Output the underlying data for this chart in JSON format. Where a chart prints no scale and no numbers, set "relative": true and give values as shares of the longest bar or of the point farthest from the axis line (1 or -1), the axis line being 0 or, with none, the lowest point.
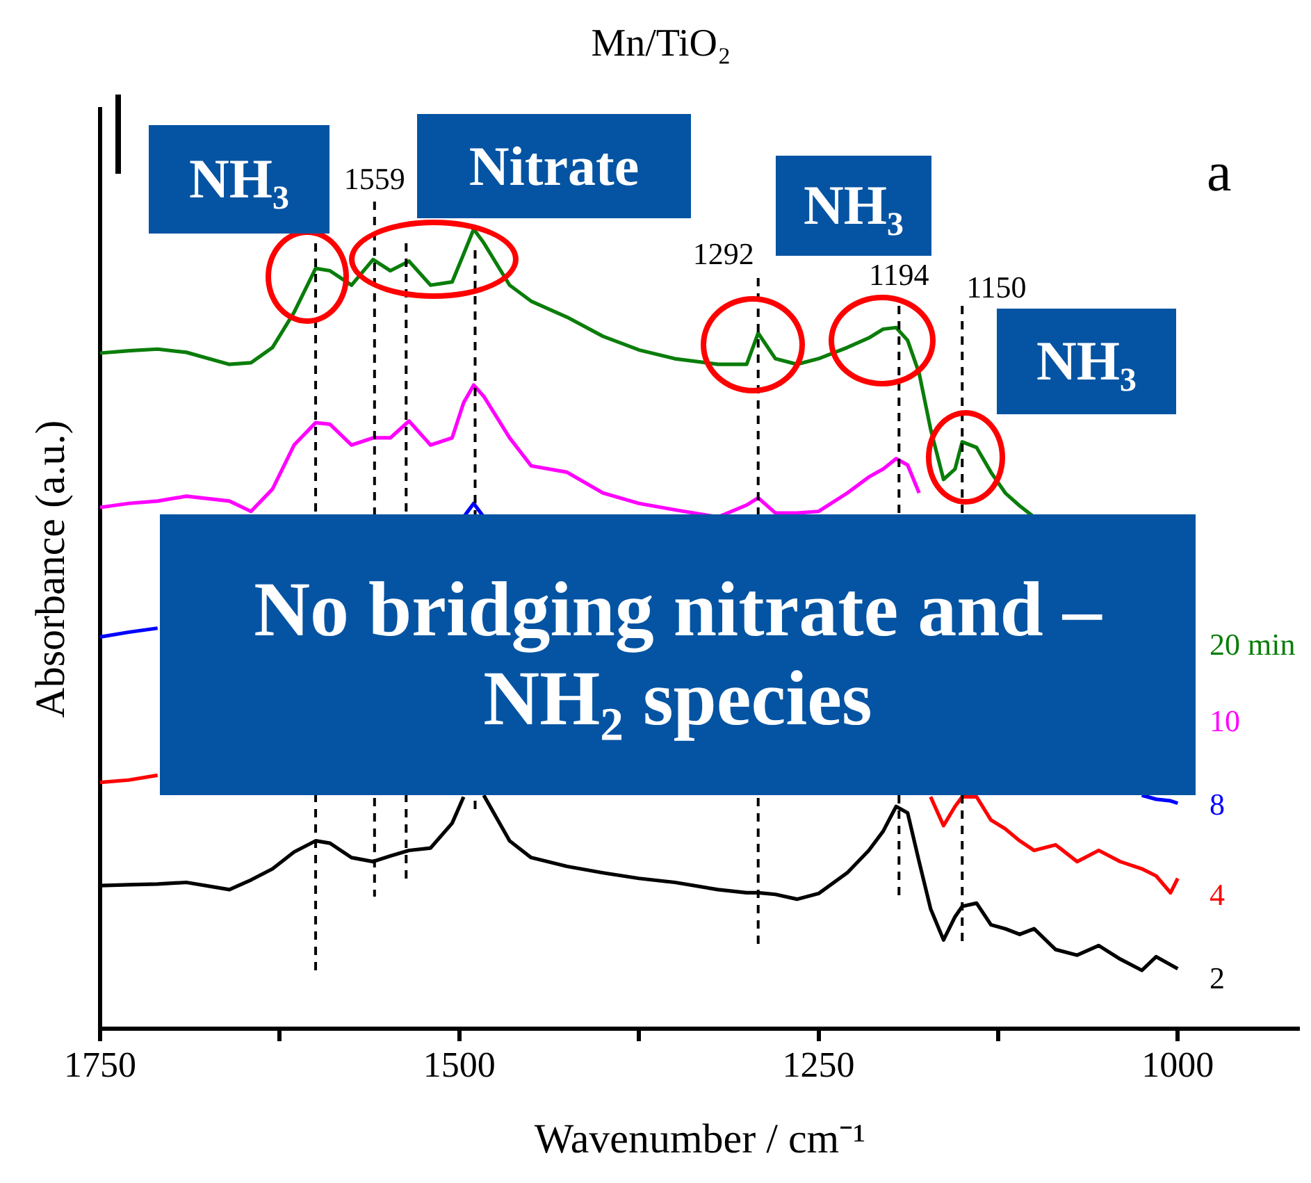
{
  "chart_data": {
    "type": "line",
    "title": "Mn/TiO₂",
    "xlabel": "Wavenumber / cm⁻¹",
    "ylabel": "Absorbance (a.u.)",
    "relative": true,
    "legend": false,
    "grid": false,
    "marker": "none",
    "xlim": [
      1750,
      915
    ],
    "xticks": [
      1750,
      {
        "value": 1625,
        "label": null
      },
      1500,
      {
        "value": 1375,
        "label": null
      },
      1250,
      {
        "value": 1125,
        "label": null
      },
      1000
    ],
    "x": [
      1750,
      1730,
      1710,
      1690,
      1660,
      1645,
      1630,
      1615,
      1600,
      1590,
      1575,
      1560,
      1548,
      1535,
      1520,
      1505,
      1497,
      1490,
      1483,
      1465,
      1450,
      1425,
      1400,
      1375,
      1350,
      1320,
      1300,
      1292,
      1280,
      1265,
      1250,
      1230,
      1215,
      1205,
      1196,
      1188,
      1180,
      1172,
      1163,
      1155,
      1150,
      1140,
      1130,
      1120,
      1110,
      1100,
      1085,
      1070,
      1055,
      1040,
      1025,
      1015,
      1005,
      1000
    ],
    "series": [
      {
        "name": "20 min",
        "color": "#0a7d0a",
        "values": [
          0.845,
          0.848,
          0.85,
          0.846,
          0.831,
          0.833,
          0.852,
          0.896,
          0.951,
          0.948,
          0.93,
          0.962,
          0.948,
          0.96,
          0.93,
          0.934,
          0.969,
          1,
          0.983,
          0.93,
          0.91,
          0.89,
          0.866,
          0.849,
          0.838,
          0.831,
          0.831,
          0.87,
          0.838,
          0.831,
          0.838,
          0.852,
          0.864,
          0.875,
          0.877,
          0.861,
          0.82,
          0.75,
          0.687,
          0.7,
          0.734,
          0.727,
          0.696,
          0.67,
          0.654,
          0.64,
          null,
          null,
          null,
          null,
          null,
          null,
          null,
          null
        ]
      },
      {
        "name": "10",
        "color": "#ff00ff",
        "values": [
          0.652,
          0.657,
          0.66,
          0.666,
          0.66,
          0.647,
          0.675,
          0.73,
          0.758,
          0.756,
          0.73,
          0.739,
          0.739,
          0.76,
          0.73,
          0.739,
          0.783,
          0.805,
          0.791,
          0.739,
          0.704,
          0.696,
          0.67,
          0.657,
          0.649,
          0.64,
          0.655,
          0.664,
          0.645,
          0.645,
          0.647,
          0.67,
          0.69,
          0.7,
          0.713,
          0.705,
          0.67,
          null,
          null,
          null,
          null,
          null,
          null,
          null,
          null,
          null,
          null,
          null,
          null,
          null,
          null,
          null,
          null,
          null
        ]
      },
      {
        "name": "8",
        "color": "#0000ff",
        "values": [
          0.49,
          0.496,
          0.501,
          null,
          null,
          null,
          null,
          null,
          null,
          null,
          null,
          null,
          null,
          null,
          null,
          null,
          0.64,
          0.657,
          0.64,
          null,
          null,
          null,
          null,
          null,
          null,
          null,
          null,
          null,
          null,
          null,
          null,
          null,
          null,
          null,
          null,
          null,
          null,
          null,
          null,
          null,
          null,
          null,
          null,
          null,
          null,
          null,
          null,
          null,
          null,
          null,
          0.292,
          0.287,
          0.285,
          0.282
        ]
      },
      {
        "name": "4",
        "color": "#ff0000",
        "values": [
          0.308,
          0.311,
          0.317,
          null,
          null,
          null,
          null,
          null,
          null,
          null,
          null,
          null,
          null,
          null,
          null,
          null,
          null,
          null,
          null,
          null,
          null,
          null,
          null,
          null,
          null,
          null,
          null,
          null,
          null,
          null,
          null,
          null,
          null,
          null,
          null,
          null,
          null,
          0.29,
          0.254,
          0.278,
          0.29,
          0.29,
          0.261,
          0.25,
          0.235,
          0.223,
          0.23,
          0.209,
          0.223,
          0.209,
          0.2,
          0.191,
          0.17,
          0.188
        ]
      },
      {
        "name": "2",
        "color": "#000000",
        "values": [
          0.179,
          0.18,
          0.181,
          0.183,
          0.174,
          0.186,
          0.2,
          0.221,
          0.235,
          0.232,
          0.214,
          0.209,
          0.216,
          0.223,
          0.226,
          0.257,
          0.29,
          null,
          0.292,
          0.235,
          0.214,
          0.203,
          0.195,
          0.188,
          0.183,
          0.174,
          0.17,
          0.17,
          0.168,
          0.162,
          0.169,
          0.195,
          0.223,
          0.247,
          0.278,
          0.27,
          0.209,
          0.15,
          0.111,
          0.14,
          0.153,
          0.157,
          0.13,
          0.125,
          0.118,
          0.125,
          0.099,
          0.092,
          0.104,
          0.087,
          0.073,
          0.09,
          0.08,
          0.075
        ]
      }
    ],
    "ref_lines": [
      {
        "axis": "x",
        "value": 1600,
        "line_style": "dashed"
      },
      {
        "axis": "x",
        "value": 1559,
        "label": "1559",
        "line_style": "dashed"
      },
      {
        "axis": "x",
        "value": 1537,
        "line_style": "dashed"
      },
      {
        "axis": "x",
        "value": 1489,
        "line_style": "dashed"
      },
      {
        "axis": "x",
        "value": 1292,
        "label": "1292",
        "line_style": "dashed"
      },
      {
        "axis": "x",
        "value": 1194,
        "label": "1194",
        "line_style": "dashed"
      },
      {
        "axis": "x",
        "value": 1150,
        "label": "1150",
        "line_style": "dashed"
      }
    ],
    "annotations": [
      "NH₃",
      "Nitrate",
      "NH₃",
      "NH₃",
      "No bridging nitrate and –NH₂ species",
      "a"
    ]
  }
}
